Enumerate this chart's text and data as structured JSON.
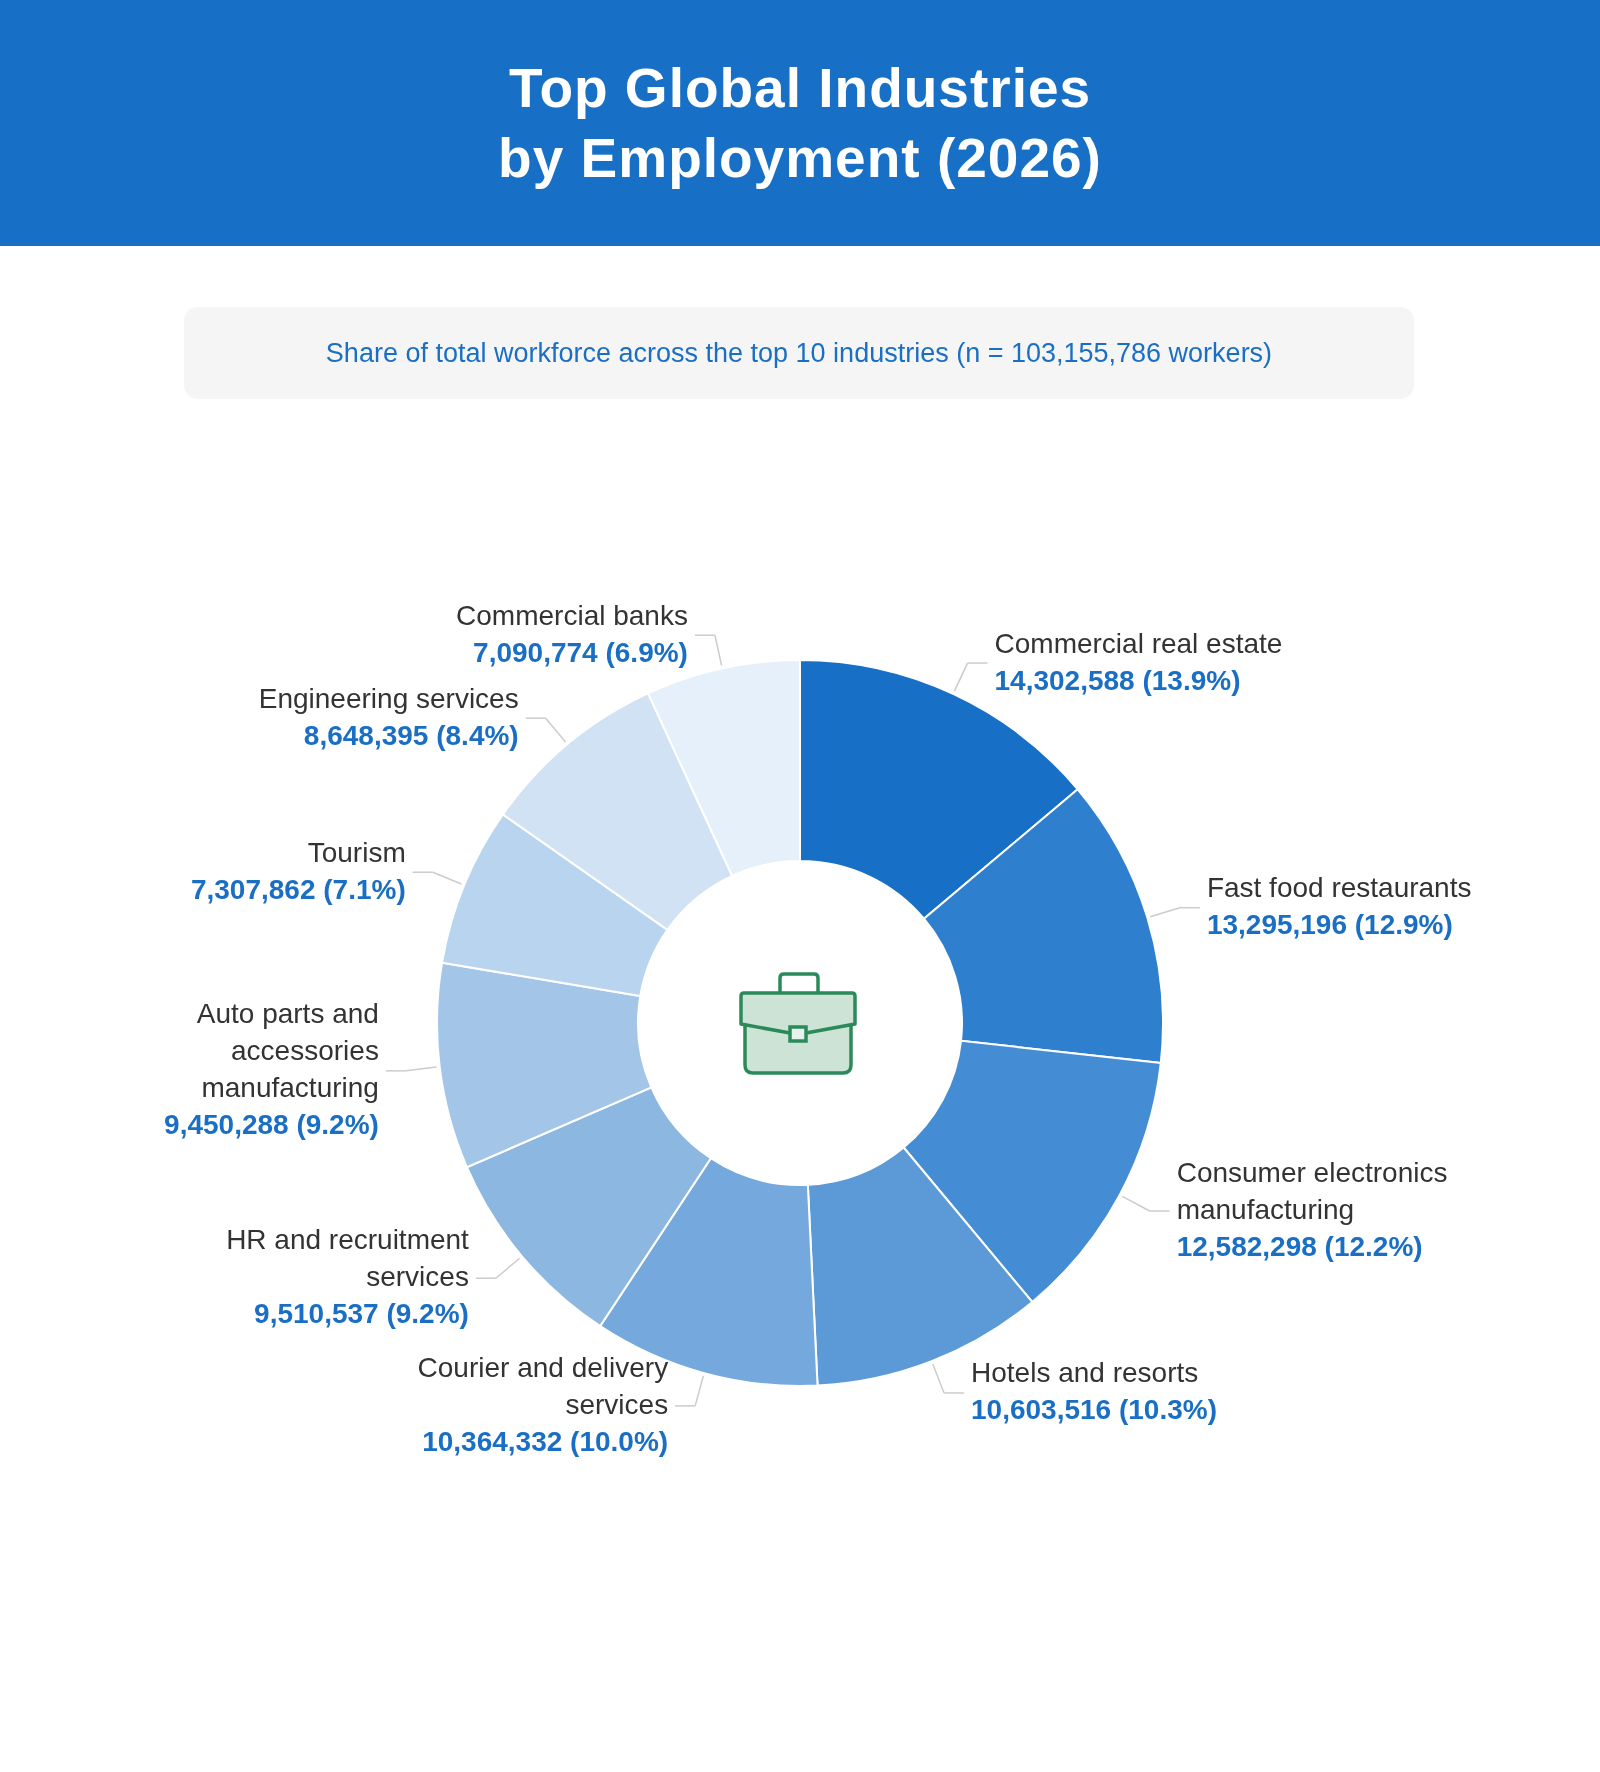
{
  "chart_data": {
    "type": "donut",
    "title": "Top Global Industries by Employment (2026)",
    "subtitle": "Share of total workforce across the top 10 industries (n = 103,155,786 workers)",
    "categories": [
      "Commercial real estate",
      "Fast food restaurants",
      "Consumer electronics manufacturing",
      "Hotels and resorts",
      "Courier and delivery services",
      "HR and recruitment services",
      "Auto parts and accessories manufacturing",
      "Tourism",
      "Engineering services",
      "Commercial banks"
    ],
    "values": [
      14302588,
      13295196,
      12582298,
      10603516,
      10364332,
      9510537,
      9450288,
      7307862,
      8648395,
      7090774
    ],
    "colors": [
      "#1770c6",
      "#2e80cf",
      "#448cd3",
      "#5b9ad7",
      "#75a9dd",
      "#8cb7e1",
      "#a3c6e8",
      "#b8d4ee",
      "#d0e2f4",
      "#e6f0fa"
    ],
    "value_labels": [
      "14,302,588 (13.9%)",
      "13,295,196 (12.9%)",
      "12,582,298 (12.2%)",
      "10,603,516 (10.3%)",
      "10,364,332 (10.0%)",
      "9,510,537 (9.2%)",
      "9,450,288 (9.2%)",
      "7,307,862 (7.1%)",
      "8,648,395 (8.4%)",
      "7,090,774 (6.9%)"
    ]
  }
}
